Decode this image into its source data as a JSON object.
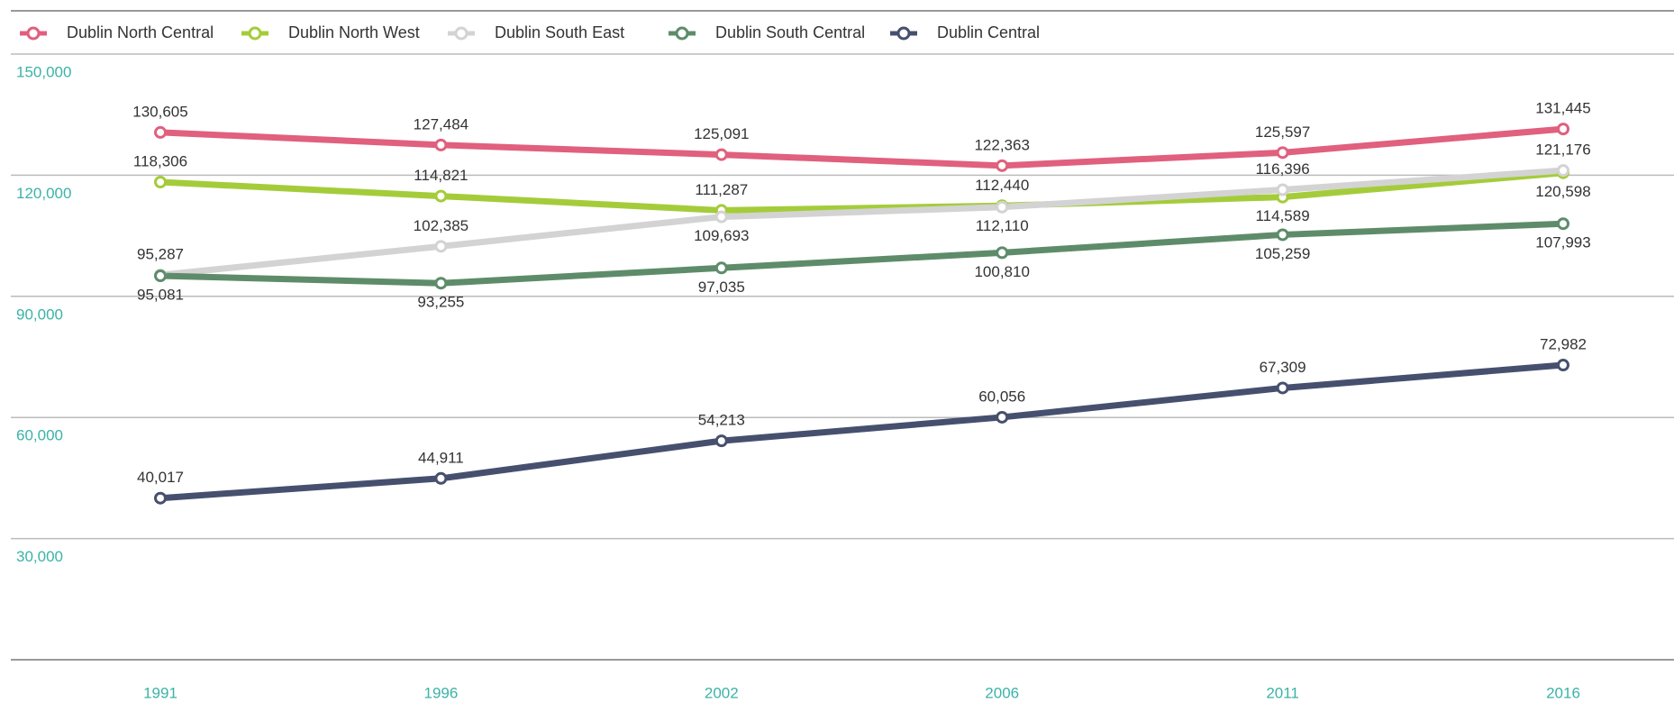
{
  "chart_data": {
    "type": "line",
    "categories": [
      "1991",
      "1996",
      "2002",
      "2006",
      "2011",
      "2016"
    ],
    "ylim": [
      0,
      150000
    ],
    "yticks": [
      {
        "value": 30000,
        "label": "30,000"
      },
      {
        "value": 60000,
        "label": "60,000"
      },
      {
        "value": 90000,
        "label": "90,000"
      },
      {
        "value": 120000,
        "label": "120,000"
      },
      {
        "value": 150000,
        "label": "150,000"
      }
    ],
    "grid": true,
    "legend": "top",
    "series": [
      {
        "name": "Dublin North Central",
        "color": "#e0607e",
        "values": [
          130605,
          127484,
          125091,
          122363,
          125597,
          131445
        ],
        "value_labels": [
          "130,605",
          "127,484",
          "125,091",
          "122,363",
          "125,597",
          "131,445"
        ]
      },
      {
        "name": "Dublin North West",
        "color": "#a4cc3a",
        "values": [
          118306,
          114821,
          111287,
          112440,
          114589,
          120598
        ],
        "value_labels": [
          "118,306",
          "114,821",
          "111,287",
          "112,440",
          "114,589",
          "120,598"
        ]
      },
      {
        "name": "Dublin South East",
        "color": "#d3d3d3",
        "values": [
          95287,
          102385,
          109693,
          112110,
          116396,
          121176
        ],
        "value_labels": [
          "95,287",
          "102,385",
          "109,693",
          "112,110",
          "116,396",
          "121,176"
        ]
      },
      {
        "name": "Dublin South Central",
        "color": "#5e8c6a",
        "values": [
          95081,
          93255,
          97035,
          100810,
          105259,
          107993
        ],
        "value_labels": [
          "95,081",
          "93,255",
          "97,035",
          "100,810",
          "105,259",
          "107,993"
        ]
      },
      {
        "name": "Dublin Central",
        "color": "#46506e",
        "values": [
          40017,
          44911,
          54213,
          60056,
          67309,
          72982
        ],
        "value_labels": [
          "40,017",
          "44,911",
          "54,213",
          "60,056",
          "67,309",
          "72,982"
        ]
      }
    ]
  }
}
